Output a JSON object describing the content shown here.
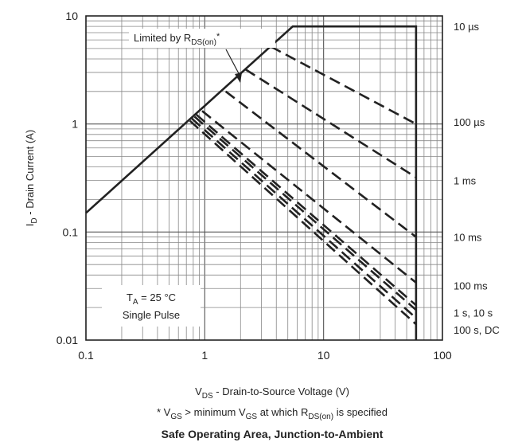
{
  "chart_data": {
    "type": "line",
    "title": "Safe Operating Area, Junction-to-Ambient",
    "footnote": {
      "prefix": "* V",
      "sub1": "GS",
      "mid": " > minimum V",
      "sub2": "GS",
      "mid2": " at which R",
      "sub3": "DS(on)",
      "suffix": " is specified"
    },
    "xlabel": {
      "main": "V",
      "sub": "DS",
      "rest": " - Drain-to-Source Voltage (V)"
    },
    "ylabel": {
      "main": "I",
      "sub": "D",
      "rest": " - Drain Current (A)"
    },
    "x_scale": "log",
    "y_scale": "log",
    "xlim": [
      0.1,
      100
    ],
    "ylim": [
      0.01,
      10
    ],
    "x_ticks": [
      {
        "value": 0.1,
        "label": "0.1"
      },
      {
        "value": 1,
        "label": "1"
      },
      {
        "value": 10,
        "label": "10"
      },
      {
        "value": 100,
        "label": "100"
      }
    ],
    "y_ticks": [
      {
        "value": 0.01,
        "label": "0.01"
      },
      {
        "value": 0.1,
        "label": "0.1"
      },
      {
        "value": 1,
        "label": "1"
      },
      {
        "value": 10,
        "label": "10"
      }
    ],
    "grid": true,
    "limit_line": {
      "name": "Limited by R_DS(on)*",
      "x": [
        0.1,
        5.5,
        60,
        60
      ],
      "y": [
        0.15,
        8,
        8,
        0.01
      ]
    },
    "series": [
      {
        "name": "10 µs",
        "x": [
          5.5,
          60
        ],
        "y": [
          8,
          8
        ]
      },
      {
        "name": "100 µs",
        "x": [
          3.6,
          60
        ],
        "y": [
          5.2,
          1.0
        ]
      },
      {
        "name": "1 ms",
        "x": [
          2.2,
          60
        ],
        "y": [
          3.2,
          0.32
        ]
      },
      {
        "name": "10 ms",
        "x": [
          1.5,
          60
        ],
        "y": [
          2.0,
          0.09
        ]
      },
      {
        "name": "100 ms",
        "x": [
          0.95,
          60
        ],
        "y": [
          1.32,
          0.034
        ]
      },
      {
        "name": "1 s",
        "x": [
          0.85,
          60
        ],
        "y": [
          1.22,
          0.021
        ]
      },
      {
        "name": "10 s",
        "x": [
          0.82,
          60
        ],
        "y": [
          1.17,
          0.019
        ]
      },
      {
        "name": "100 s",
        "x": [
          0.78,
          60
        ],
        "y": [
          1.12,
          0.016
        ]
      },
      {
        "name": "DC",
        "x": [
          0.75,
          60
        ],
        "y": [
          1.07,
          0.014
        ]
      }
    ],
    "curve_labels": [
      {
        "text": "10 µs",
        "y": 8.0
      },
      {
        "text": "100 µs",
        "y": 1.05
      },
      {
        "text": "1 ms",
        "y": 0.3
      },
      {
        "text": "10 ms",
        "y": 0.09
      },
      {
        "text": "100 ms",
        "y": 0.032
      },
      {
        "text": "1 s, 10 s",
        "y": 0.018
      },
      {
        "text": "100 s, DC",
        "y": 0.0125
      }
    ],
    "annotation_limited": {
      "prefix": "Limited by R",
      "sub": "DS(on)",
      "suffix": "*"
    },
    "annotation_conditions": {
      "line1_prefix": "T",
      "line1_sub": "A",
      "line1_suffix": " = 25 °C",
      "line2": "Single Pulse"
    }
  }
}
